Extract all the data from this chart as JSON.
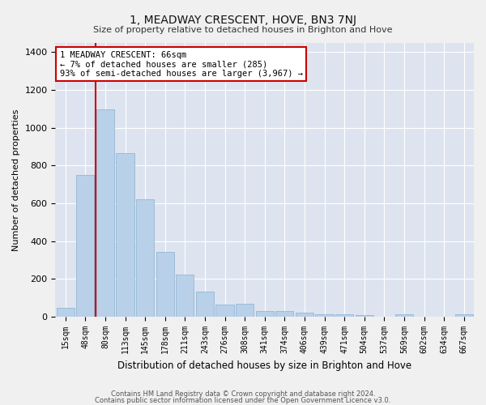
{
  "title": "1, MEADWAY CRESCENT, HOVE, BN3 7NJ",
  "subtitle": "Size of property relative to detached houses in Brighton and Hove",
  "xlabel": "Distribution of detached houses by size in Brighton and Hove",
  "ylabel": "Number of detached properties",
  "footer1": "Contains HM Land Registry data © Crown copyright and database right 2024.",
  "footer2": "Contains public sector information licensed under the Open Government Licence v3.0.",
  "bar_labels": [
    "15sqm",
    "48sqm",
    "80sqm",
    "113sqm",
    "145sqm",
    "178sqm",
    "211sqm",
    "243sqm",
    "276sqm",
    "308sqm",
    "341sqm",
    "374sqm",
    "406sqm",
    "439sqm",
    "471sqm",
    "504sqm",
    "537sqm",
    "569sqm",
    "602sqm",
    "634sqm",
    "667sqm"
  ],
  "bar_values": [
    50,
    750,
    1095,
    865,
    620,
    345,
    225,
    135,
    65,
    70,
    30,
    30,
    22,
    15,
    15,
    8,
    0,
    12,
    0,
    0,
    12
  ],
  "bar_color": "#b8d0e8",
  "bar_edgecolor": "#8ab0d0",
  "background_color": "#dde4f0",
  "grid_color": "#ffffff",
  "vline_color": "#cc0000",
  "vline_position": 1.5,
  "annotation_text": "1 MEADWAY CRESCENT: 66sqm\n← 7% of detached houses are smaller (285)\n93% of semi-detached houses are larger (3,967) →",
  "annotation_box_facecolor": "#ffffff",
  "annotation_box_edgecolor": "#cc0000",
  "ylim": [
    0,
    1450
  ],
  "yticks": [
    0,
    200,
    400,
    600,
    800,
    1000,
    1200,
    1400
  ],
  "fig_facecolor": "#f0f0f0"
}
